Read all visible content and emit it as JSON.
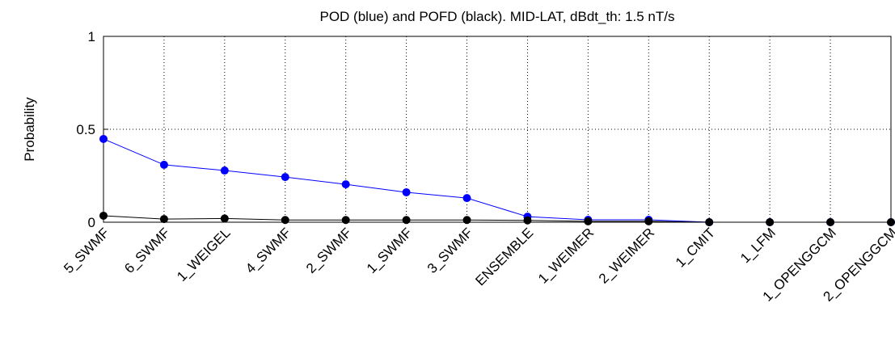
{
  "chart_data": {
    "type": "line",
    "title": "POD (blue) and POFD (black). MID-LAT, dBdt_th: 1.5 nT/s",
    "y_label": "Probability",
    "categories": [
      "5_SWMF",
      "6_SWMF",
      "1_WEIGEL",
      "4_SWMF",
      "2_SWMF",
      "1_SWMF",
      "3_SWMF",
      "ENSEMBLE",
      "1_WEIMER",
      "2_WEIMER",
      "1_CMIT",
      "1_LFM",
      "1_OPENGGCM",
      "2_OPENGGCM"
    ],
    "series": [
      {
        "color": "#0000ff",
        "values": [
          0.448,
          0.309,
          0.278,
          0.243,
          0.204,
          0.161,
          0.13,
          0.03,
          0.013,
          0.013,
          0,
          0,
          0,
          0
        ]
      },
      {
        "color": "#000000",
        "values": [
          0.035,
          0.017,
          0.02,
          0.012,
          0.012,
          0.012,
          0.012,
          0.01,
          0.005,
          0.005,
          0,
          0,
          0,
          0
        ]
      }
    ],
    "ylim": [
      0,
      1
    ],
    "yticks": [
      0,
      0.5,
      1
    ],
    "grid": true
  }
}
